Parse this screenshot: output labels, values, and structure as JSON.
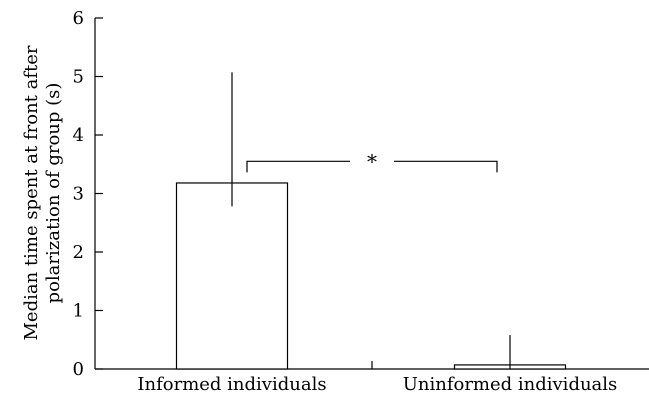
{
  "chart_data": {
    "type": "bar",
    "title": "",
    "xlabel": "",
    "ylabel_lines": [
      "Median time spent at front after",
      "polarization of group (s)"
    ],
    "categories": [
      "Informed individuals",
      "Uninformed individuals"
    ],
    "values": [
      3.18,
      0.07
    ],
    "error_bars": [
      {
        "low": 2.78,
        "high": 5.07
      },
      {
        "low": 0.0,
        "high": 0.58
      }
    ],
    "ylim": [
      0,
      6
    ],
    "yticks": [
      0,
      1,
      2,
      3,
      4,
      5,
      6
    ],
    "grid": false,
    "significance": {
      "between": [
        0,
        1
      ],
      "y": 3.55,
      "label": "*"
    }
  }
}
